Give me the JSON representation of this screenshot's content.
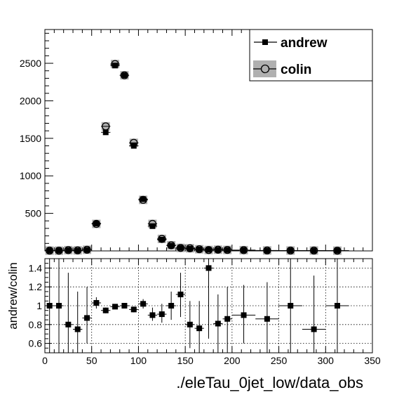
{
  "chart_data": [
    {
      "panel": "top",
      "type": "scatter",
      "legend_position": "top-right",
      "xlim": [
        0,
        350
      ],
      "ylim": [
        0,
        2950
      ],
      "yticks": [
        "500",
        "1000",
        "1500",
        "2000",
        "2500"
      ],
      "grid": false,
      "series": [
        {
          "name": "andrew",
          "marker": "filled-square",
          "color": "#000000",
          "x": [
            5,
            15,
            25,
            35,
            45,
            55,
            65,
            75,
            85,
            95,
            105,
            115,
            125,
            135,
            145,
            155,
            165,
            175,
            185,
            195,
            212.5,
            237.5,
            262.5,
            287.5,
            312.5
          ],
          "y": [
            4,
            3,
            8,
            5,
            13,
            365,
            1580,
            2470,
            2340,
            1400,
            690,
            330,
            150,
            70,
            40,
            30,
            20,
            15,
            14,
            12,
            9,
            5,
            5,
            4,
            3
          ]
        },
        {
          "name": "colin",
          "marker": "open-circle",
          "color": "#000000",
          "band_color": "#b0b0b0",
          "x": [
            5,
            15,
            25,
            35,
            45,
            55,
            65,
            75,
            85,
            95,
            105,
            115,
            125,
            135,
            145,
            155,
            165,
            175,
            185,
            195,
            212.5,
            237.5,
            262.5,
            287.5,
            312.5
          ],
          "y": [
            4,
            3,
            10,
            7,
            15,
            360,
            1660,
            2490,
            2340,
            1440,
            680,
            360,
            160,
            75,
            40,
            35,
            22,
            12,
            16,
            13,
            10,
            6,
            5,
            5,
            3
          ]
        }
      ]
    },
    {
      "panel": "ratio",
      "type": "scatter",
      "xlabel": "./eleTau_0jet_low/data_obs",
      "ylabel": "andrew/colin",
      "xlim": [
        0,
        350
      ],
      "ylim": [
        0.5,
        1.5
      ],
      "xticks": [
        "0",
        "50",
        "100",
        "150",
        "200",
        "250",
        "300",
        "350"
      ],
      "yticks": [
        "0.6",
        "0.8",
        "1",
        "1.2",
        "1.4"
      ],
      "grid": true,
      "points": [
        {
          "x": 5,
          "y": 1.0,
          "xerr": 5,
          "ylo": 0.45,
          "yhi": 1.6
        },
        {
          "x": 15,
          "y": 1.0,
          "xerr": 5,
          "ylo": 0.45,
          "yhi": 1.6
        },
        {
          "x": 25,
          "y": 0.8,
          "xerr": 5,
          "ylo": 0.45,
          "yhi": 1.35
        },
        {
          "x": 35,
          "y": 0.75,
          "xerr": 5,
          "ylo": 0.45,
          "yhi": 1.15
        },
        {
          "x": 45,
          "y": 0.87,
          "xerr": 5,
          "ylo": 0.6,
          "yhi": 1.2
        },
        {
          "x": 55,
          "y": 1.03,
          "xerr": 5,
          "ylo": 0.97,
          "yhi": 1.09
        },
        {
          "x": 65,
          "y": 0.95,
          "xerr": 5,
          "ylo": 0.92,
          "yhi": 0.98
        },
        {
          "x": 75,
          "y": 0.99,
          "xerr": 5,
          "ylo": 0.97,
          "yhi": 1.01
        },
        {
          "x": 85,
          "y": 1.0,
          "xerr": 5,
          "ylo": 0.98,
          "yhi": 1.02
        },
        {
          "x": 95,
          "y": 0.96,
          "xerr": 5,
          "ylo": 0.93,
          "yhi": 0.99
        },
        {
          "x": 105,
          "y": 1.02,
          "xerr": 5,
          "ylo": 0.97,
          "yhi": 1.07
        },
        {
          "x": 115,
          "y": 0.9,
          "xerr": 5,
          "ylo": 0.84,
          "yhi": 0.98
        },
        {
          "x": 125,
          "y": 0.91,
          "xerr": 5,
          "ylo": 0.82,
          "yhi": 1.02
        },
        {
          "x": 135,
          "y": 1.0,
          "xerr": 5,
          "ylo": 0.85,
          "yhi": 1.15
        },
        {
          "x": 145,
          "y": 1.12,
          "xerr": 5,
          "ylo": 0.88,
          "yhi": 1.35
        },
        {
          "x": 155,
          "y": 0.8,
          "xerr": 5,
          "ylo": 0.55,
          "yhi": 1.05
        },
        {
          "x": 165,
          "y": 0.76,
          "xerr": 5,
          "ylo": 0.5,
          "yhi": 1.05
        },
        {
          "x": 175,
          "y": 1.4,
          "xerr": 5,
          "ylo": 0.65,
          "yhi": 1.6
        },
        {
          "x": 185,
          "y": 0.81,
          "xerr": 5,
          "ylo": 0.5,
          "yhi": 1.12
        },
        {
          "x": 195,
          "y": 0.86,
          "xerr": 5,
          "ylo": 0.5,
          "yhi": 1.2
        },
        {
          "x": 212.5,
          "y": 0.9,
          "xerr": 12.5,
          "ylo": 0.6,
          "yhi": 1.22
        },
        {
          "x": 237.5,
          "y": 0.86,
          "xerr": 12.5,
          "ylo": 0.5,
          "yhi": 1.25
        },
        {
          "x": 262.5,
          "y": 1.0,
          "xerr": 12.5,
          "ylo": 0.5,
          "yhi": 1.6
        },
        {
          "x": 287.5,
          "y": 0.75,
          "xerr": 12.5,
          "ylo": 0.5,
          "yhi": 1.32
        },
        {
          "x": 312.5,
          "y": 1.0,
          "xerr": 12.5,
          "ylo": 0.5,
          "yhi": 1.6
        }
      ]
    }
  ]
}
